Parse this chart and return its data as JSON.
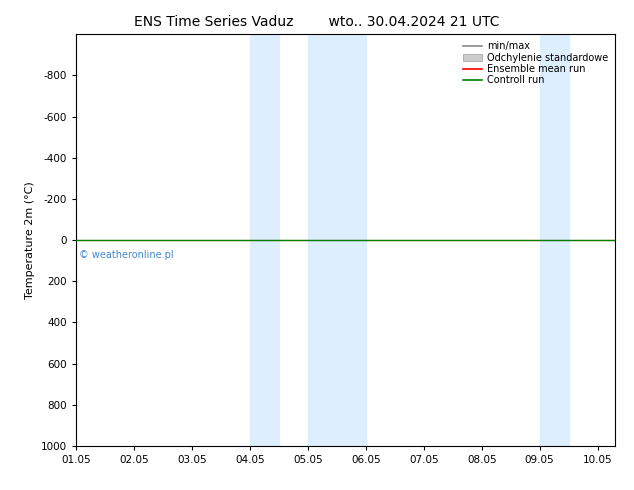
{
  "title_left": "ENS Time Series Vaduz",
  "title_right": "wto.. 30.04.2024 21 UTC",
  "ylabel": "Temperature 2m (°C)",
  "ylim_bottom": 1000,
  "ylim_top": -1000,
  "yticks": [
    -800,
    -600,
    -400,
    -200,
    0,
    200,
    400,
    600,
    800,
    1000
  ],
  "xtick_positions": [
    1,
    2,
    3,
    4,
    5,
    6,
    7,
    8,
    9,
    10
  ],
  "xtick_labels": [
    "01.05",
    "02.05",
    "03.05",
    "04.05",
    "05.05",
    "06.05",
    "07.05",
    "08.05",
    "09.05",
    "10.05"
  ],
  "xlim": [
    1,
    10.3
  ],
  "blue_bands": [
    {
      "x_start": 4.0,
      "x_end": 4.5
    },
    {
      "x_start": 5.0,
      "x_end": 6.0
    },
    {
      "x_start": 9.0,
      "x_end": 9.5
    }
  ],
  "control_run_y": 0.0,
  "legend_labels": [
    "min/max",
    "Odchylenie standardowe",
    "Ensemble mean run",
    "Controll run"
  ],
  "legend_colors": [
    "#888888",
    "#cccccc",
    "#ff0000",
    "#008000"
  ],
  "watermark": "© weatheronline.pl",
  "watermark_color": "#4488cc",
  "background_color": "#ffffff",
  "band_color": "#ddeeff",
  "title_fontsize": 10,
  "axis_fontsize": 8,
  "tick_fontsize": 7.5,
  "legend_fontsize": 7
}
